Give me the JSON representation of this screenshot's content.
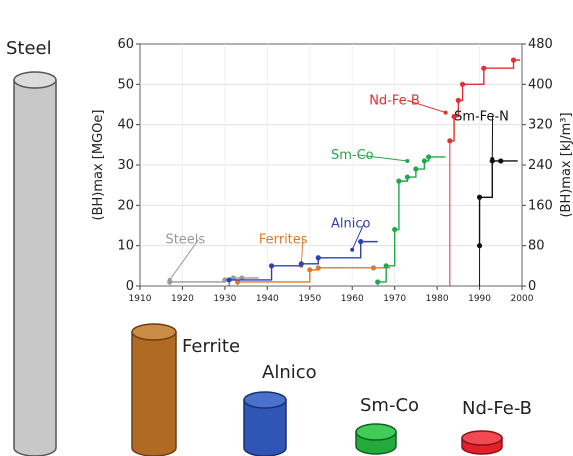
{
  "cylinders": {
    "steel": {
      "label": "Steel",
      "color": "#c8c8c8"
    },
    "ferrite": {
      "label": "Ferrite",
      "color": "#b06a24"
    },
    "alnico": {
      "label": "Alnico",
      "color": "#2f55b5"
    },
    "smco": {
      "label": "Sm-Co",
      "color": "#22aa3a"
    },
    "ndfeb": {
      "label": "Nd-Fe-B",
      "color": "#e2202a"
    }
  },
  "chart_data": {
    "type": "line",
    "xlabel": "",
    "ylabel_left": "(BH)max [MGOe]",
    "ylabel_right": "(BH)max [kJ/m³]",
    "xlim": [
      1910,
      2000
    ],
    "ylim": [
      0,
      60
    ],
    "ylim_right": [
      0,
      480
    ],
    "xticks": [
      1910,
      1920,
      1930,
      1940,
      1950,
      1960,
      1970,
      1980,
      1990,
      2000
    ],
    "yticks_left": [
      0,
      10,
      20,
      30,
      40,
      50,
      60
    ],
    "yticks_right": [
      0,
      80,
      160,
      240,
      320,
      400,
      480
    ],
    "grid": true,
    "series": [
      {
        "name": "Steels",
        "color": "#999999",
        "x": [
          1917,
          1930,
          1932,
          1934
        ],
        "y": [
          1,
          1.5,
          2,
          2
        ],
        "label_pos": {
          "x": 1916,
          "y": 10.5
        },
        "arrow_to": {
          "x": 1917,
          "y": 1.5
        }
      },
      {
        "name": "Ferrites",
        "color": "#e07a2a",
        "x": [
          1933,
          1950,
          1952,
          1965
        ],
        "y": [
          1,
          4,
          4.5,
          4.5
        ],
        "label_pos": {
          "x": 1938,
          "y": 10.5
        },
        "arrow_to": {
          "x": 1948,
          "y": 5
        }
      },
      {
        "name": "Alnico",
        "color": "#3040b0",
        "x": [
          1931,
          1941,
          1948,
          1952,
          1962
        ],
        "y": [
          1.5,
          5,
          5.5,
          7,
          11
        ],
        "label_pos": {
          "x": 1955,
          "y": 14.5
        },
        "arrow_to": {
          "x": 1960,
          "y": 9
        }
      },
      {
        "name": "Sm-Co",
        "color": "#22a84a",
        "x": [
          1966,
          1968,
          1970,
          1971,
          1973,
          1975,
          1977,
          1978
        ],
        "y": [
          1,
          5,
          14,
          26,
          27,
          29,
          31,
          32
        ],
        "label_pos": {
          "x": 1955,
          "y": 31.5
        },
        "arrow_to": {
          "x": 1973,
          "y": 31
        }
      },
      {
        "name": "Nd-Fe-B",
        "color": "#e23030",
        "x": [
          1983,
          1984,
          1985,
          1986,
          1991,
          1998
        ],
        "y": [
          36,
          42,
          46,
          50,
          54,
          56
        ],
        "label_pos": {
          "x": 1964,
          "y": 45
        },
        "arrow_to": {
          "x": 1982,
          "y": 43
        }
      },
      {
        "name": "Sm-Fe-N",
        "color": "#111111",
        "x": [
          1990,
          1990,
          1993,
          1995
        ],
        "y": [
          10,
          22,
          31,
          31
        ],
        "label_pos": {
          "x": 1984,
          "y": 41
        },
        "arrow_to": {
          "x": 1993,
          "y": 31.5
        }
      }
    ]
  }
}
